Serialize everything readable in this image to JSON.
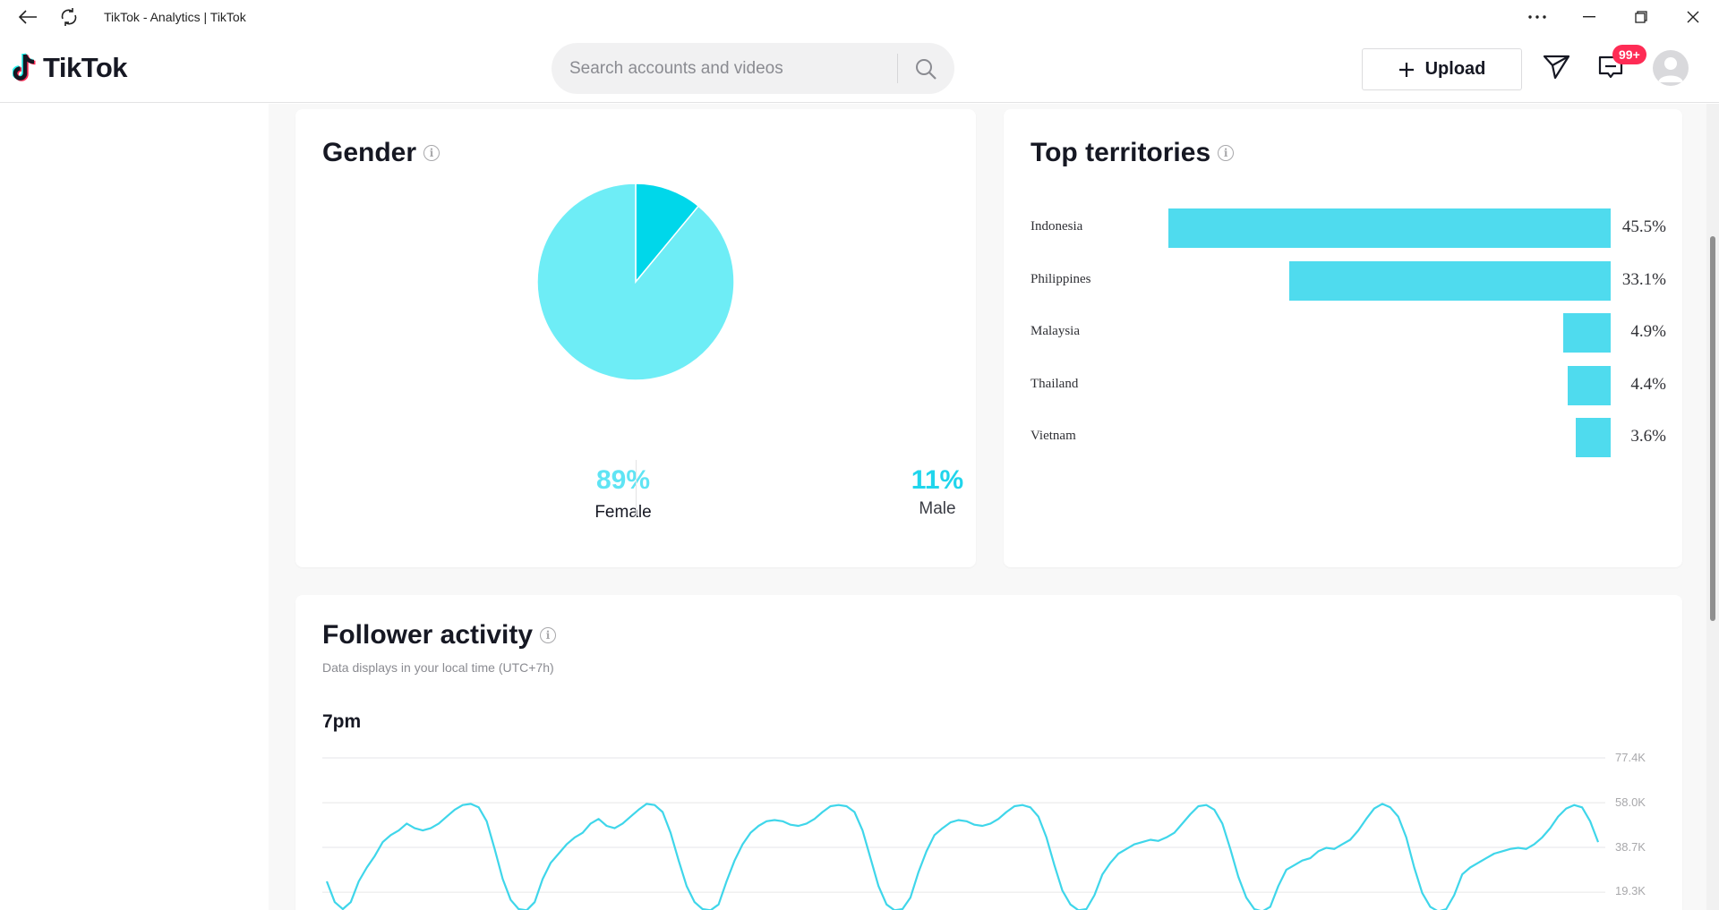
{
  "window": {
    "title": "TikTok - Analytics | TikTok"
  },
  "header": {
    "logo_text": "TikTok",
    "search_placeholder": "Search accounts and videos",
    "upload_label": "Upload",
    "inbox_badge": "99+"
  },
  "gender": {
    "title": "Gender",
    "female_pct": "89%",
    "female_label": "Female",
    "male_pct": "11%",
    "male_label": "Male",
    "colors": {
      "female": "#6eedf6",
      "male": "#00d7ea"
    }
  },
  "territories": {
    "title": "Top territories",
    "items": [
      {
        "name": "Indonesia",
        "value": 45.5,
        "label": "45.5%"
      },
      {
        "name": "Philippines",
        "value": 33.1,
        "label": "33.1%"
      },
      {
        "name": "Malaysia",
        "value": 4.9,
        "label": "4.9%"
      },
      {
        "name": "Thailand",
        "value": 4.4,
        "label": "4.4%"
      },
      {
        "name": "Vietnam",
        "value": 3.6,
        "label": "3.6%"
      }
    ]
  },
  "activity": {
    "title": "Follower activity",
    "subtitle": "Data displays in your local time (UTC+7h)",
    "peak_label": "7pm",
    "y_ticks": [
      "77.4K",
      "58.0K",
      "38.7K",
      "19.3K"
    ]
  },
  "chart_data": [
    {
      "type": "pie",
      "categories": [
        "Female",
        "Male"
      ],
      "values": [
        89,
        11
      ],
      "title": "Gender"
    },
    {
      "type": "bar",
      "categories": [
        "Indonesia",
        "Philippines",
        "Malaysia",
        "Thailand",
        "Vietnam"
      ],
      "values": [
        45.5,
        33.1,
        4.9,
        4.4,
        3.6
      ],
      "title": "Top territories"
    },
    {
      "type": "line",
      "title": "Follower activity",
      "ylim": [
        0,
        77400
      ],
      "y_ticks": [
        77400,
        58000,
        38700,
        19300
      ],
      "series": [
        {
          "values": [
            24000,
            15000,
            12000,
            15000,
            24000,
            30000,
            35000,
            41000,
            44000,
            46000,
            49000,
            47000,
            46000,
            47000,
            49000,
            52000,
            55000,
            57000,
            57500,
            56000,
            50000,
            38000,
            25000,
            16000,
            12000,
            11500,
            15000,
            25000,
            32000,
            36000,
            40000,
            43000,
            45000,
            49000,
            51000,
            48000,
            47000,
            49000,
            52000,
            55000,
            57500,
            57000,
            54000,
            45000,
            33000,
            22000,
            15000,
            12000,
            11500,
            14000,
            24000,
            33000,
            40000,
            45000,
            48000,
            50000,
            50500,
            50000,
            48500,
            48000,
            49000,
            51000,
            54000,
            56500,
            57000,
            56500,
            54000,
            46000,
            34000,
            22000,
            14000,
            11500,
            12000,
            17000,
            28000,
            37000,
            44000,
            47000,
            49500,
            50500,
            50000,
            48500,
            48000,
            49000,
            51000,
            54000,
            56500,
            57000,
            56000,
            52000,
            43000,
            31000,
            20000,
            14000,
            11500,
            12000,
            18000,
            27000,
            32000,
            36000,
            38000,
            40000,
            41000,
            42000,
            41500,
            43000,
            45000,
            49000,
            53000,
            56500,
            57000,
            55000,
            49000,
            38000,
            26000,
            17000,
            12000,
            11000,
            13000,
            22000,
            29000,
            31000,
            33000,
            34000,
            37000,
            38500,
            38000,
            40000,
            42000,
            46000,
            51000,
            55500,
            57500,
            56000,
            52000,
            43000,
            30000,
            19000,
            13000,
            11000,
            12000,
            18000,
            27000,
            30000,
            32000,
            34000,
            36000,
            37000,
            38000,
            38500,
            38000,
            40000,
            43000,
            47000,
            52000,
            55500,
            57000,
            56000,
            50000,
            41000
          ]
        }
      ]
    }
  ]
}
